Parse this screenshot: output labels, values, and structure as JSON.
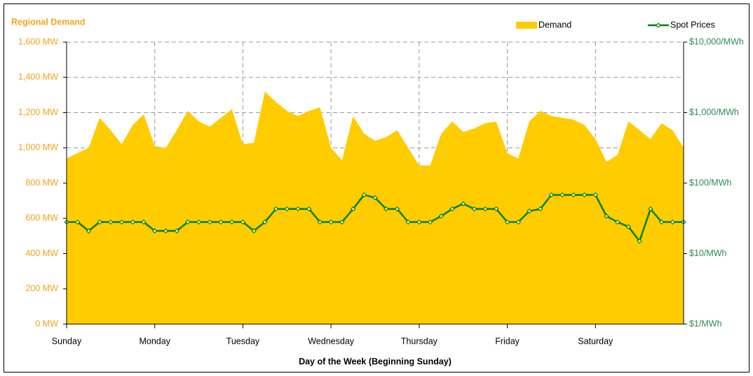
{
  "chart_data": {
    "type": "area",
    "title": "Regional Demand",
    "xlabel": "Day of the Week (Beginning Sunday)",
    "x": [
      0,
      0.125,
      0.25,
      0.375,
      0.5,
      0.625,
      0.75,
      0.875,
      1,
      1.125,
      1.25,
      1.375,
      1.5,
      1.625,
      1.75,
      1.875,
      2,
      2.125,
      2.25,
      2.375,
      2.5,
      2.625,
      2.75,
      2.875,
      3,
      3.125,
      3.25,
      3.375,
      3.5,
      3.625,
      3.75,
      3.875,
      4,
      4.125,
      4.25,
      4.375,
      4.5,
      4.625,
      4.75,
      4.875,
      5,
      5.125,
      5.25,
      5.375,
      5.5,
      5.625,
      5.75,
      5.875,
      6,
      6.125,
      6.25,
      6.375,
      6.5,
      6.625,
      6.75,
      6.875,
      7
    ],
    "series": [
      {
        "name": "Demand",
        "type": "area",
        "color": "#ffcc00",
        "values": [
          940,
          970,
          1000,
          1170,
          1100,
          1020,
          1130,
          1190,
          1010,
          1000,
          1100,
          1210,
          1150,
          1120,
          1170,
          1220,
          1020,
          1030,
          1320,
          1260,
          1210,
          1180,
          1210,
          1230,
          1000,
          930,
          1180,
          1080,
          1040,
          1060,
          1100,
          1000,
          900,
          900,
          1080,
          1150,
          1090,
          1110,
          1140,
          1150,
          970,
          940,
          1150,
          1210,
          1180,
          1170,
          1160,
          1130,
          1050,
          920,
          960,
          1150,
          1100,
          1050,
          1140,
          1100,
          1000
        ]
      },
      {
        "name": "Spot Prices",
        "type": "line",
        "axis": "y2",
        "color": "#008000",
        "values": [
          28,
          28,
          21,
          28,
          28,
          28,
          28,
          28,
          21,
          21,
          21,
          28,
          28,
          28,
          28,
          28,
          28,
          21,
          28,
          43,
          43,
          43,
          43,
          28,
          28,
          28,
          43,
          68,
          62,
          43,
          43,
          28,
          28,
          28,
          34,
          43,
          51,
          43,
          43,
          43,
          28,
          28,
          40,
          43,
          68,
          68,
          68,
          68,
          68,
          34,
          28,
          24,
          15,
          43,
          28,
          28,
          28
        ]
      }
    ],
    "xlim": [
      0,
      7
    ],
    "xticks": [
      {
        "value": 0,
        "label": "Sunday"
      },
      {
        "value": 1,
        "label": "Monday"
      },
      {
        "value": 2,
        "label": "Tuesday"
      },
      {
        "value": 3,
        "label": "Wednesday"
      },
      {
        "value": 4,
        "label": "Thursday"
      },
      {
        "value": 5,
        "label": "Friday"
      },
      {
        "value": 6,
        "label": "Saturday"
      }
    ],
    "ylim": [
      0,
      1600
    ],
    "yticks": [
      {
        "value": 0,
        "label": "0 MW"
      },
      {
        "value": 200,
        "label": "200 MW"
      },
      {
        "value": 400,
        "label": "400 MW"
      },
      {
        "value": 600,
        "label": "600 MW"
      },
      {
        "value": 800,
        "label": "800 MW"
      },
      {
        "value": 1000,
        "label": "1,000 MW"
      },
      {
        "value": 1200,
        "label": "1,200 MW"
      },
      {
        "value": 1400,
        "label": "1,400 MW"
      },
      {
        "value": 1600,
        "label": "1,600 MW"
      }
    ],
    "y2lim": [
      1,
      10000
    ],
    "y2log": true,
    "y2ticks": [
      {
        "value": 1,
        "label": "$1/MWh"
      },
      {
        "value": 10,
        "label": "$10/MWh"
      },
      {
        "value": 100,
        "label": "$100/MWh"
      },
      {
        "value": 1000,
        "label": "$1,000/MWh"
      },
      {
        "value": 10000,
        "label": "$10,000/MWh"
      }
    ],
    "grid": true,
    "legend": "top-right"
  }
}
